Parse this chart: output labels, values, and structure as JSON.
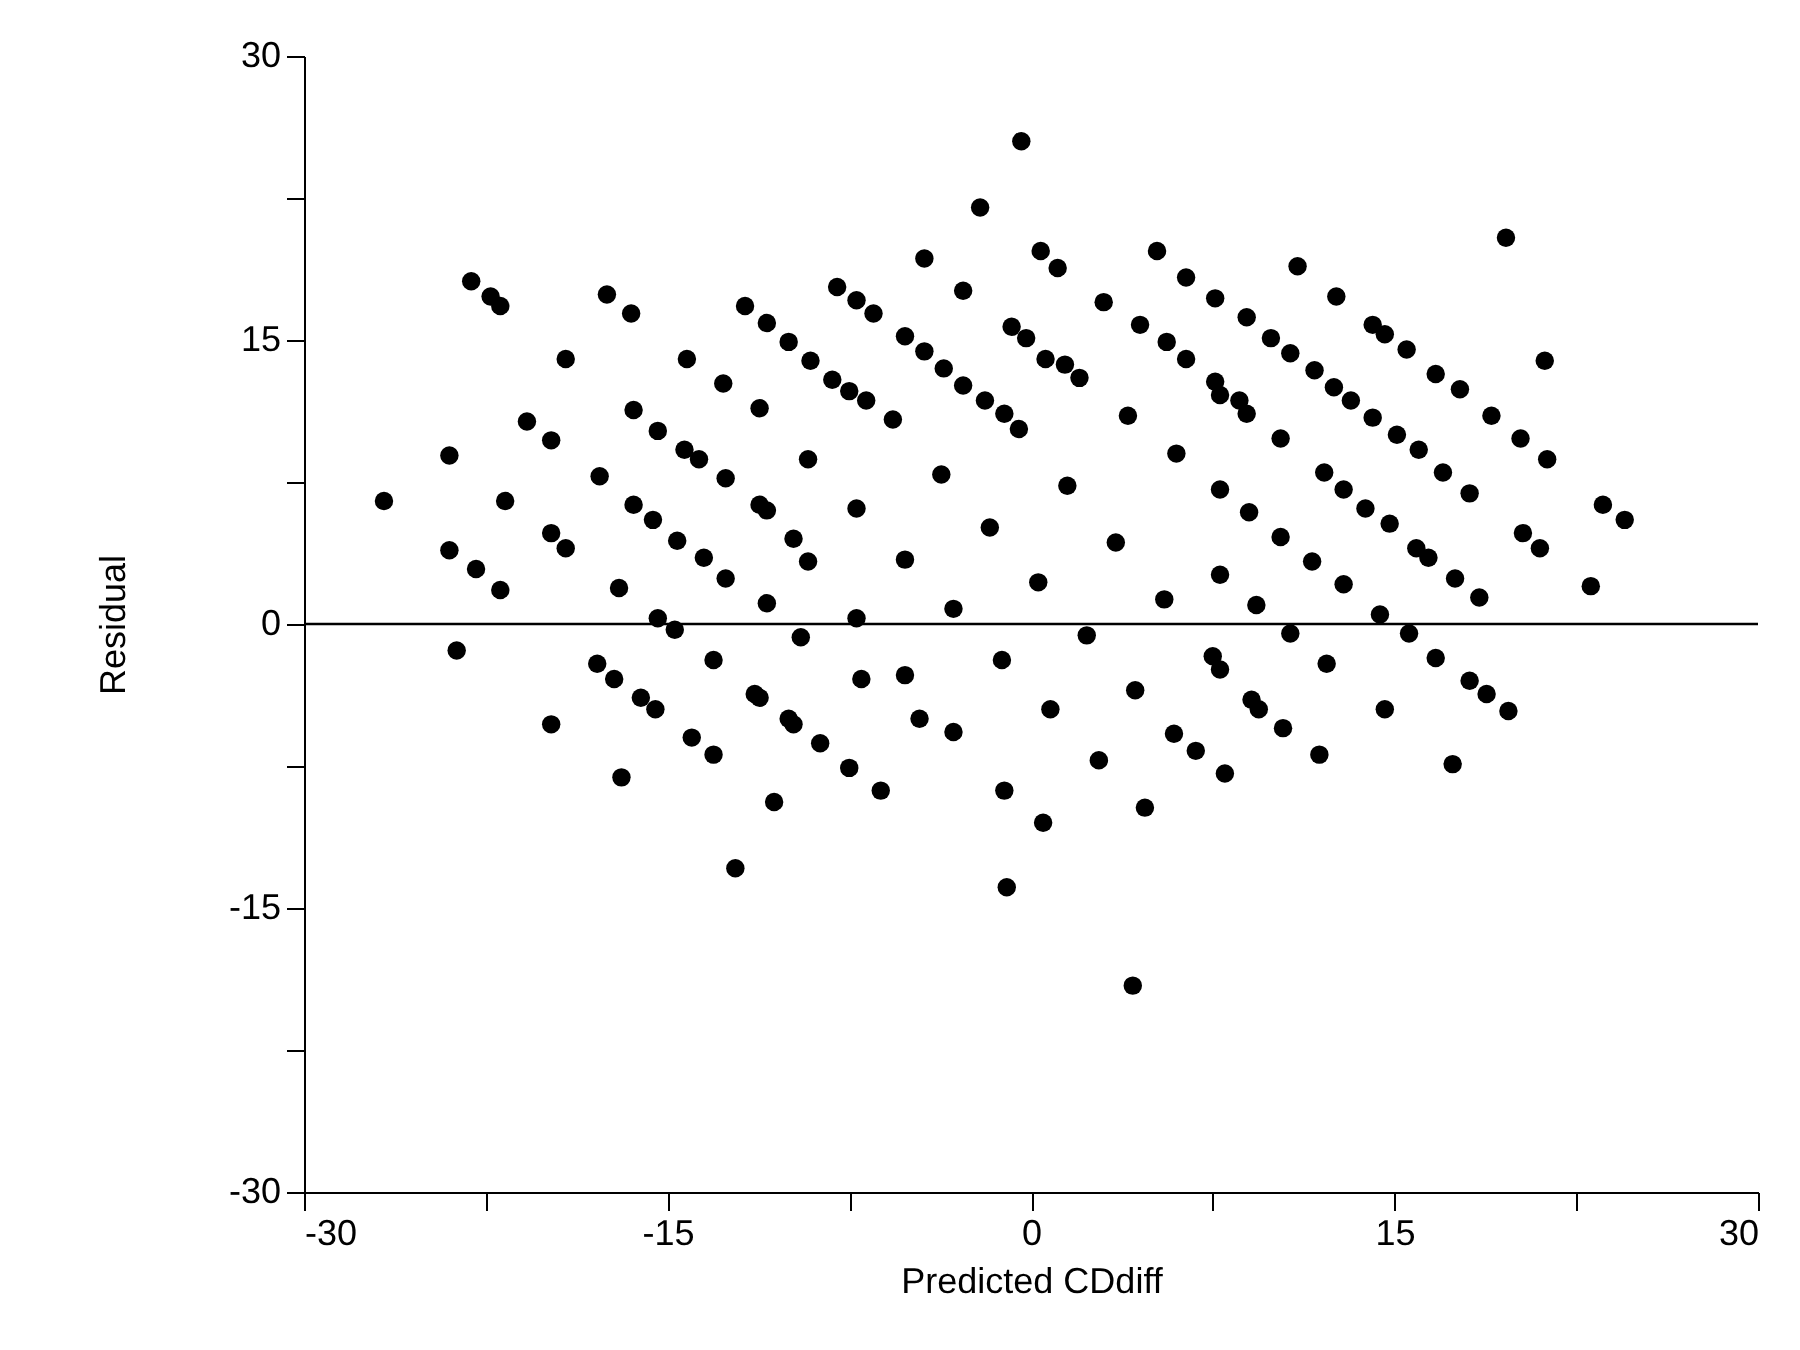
{
  "chart_data": {
    "type": "scatter",
    "xlabel": "Predicted CDdiff",
    "ylabel": "Residual",
    "xlim": [
      -30,
      30
    ],
    "ylim": [
      -30,
      30
    ],
    "xticks": [
      -30,
      {
        "value": -22.5,
        "label": null
      },
      -15,
      {
        "value": -7.5,
        "label": null
      },
      0,
      {
        "value": 7.5,
        "label": null
      },
      15,
      {
        "value": 22.5,
        "label": null
      },
      30
    ],
    "yticks": [
      -30,
      {
        "value": -22.5,
        "label": null
      },
      -15,
      {
        "value": -7.5,
        "label": null
      },
      0,
      {
        "value": 7.5,
        "label": null
      },
      15,
      {
        "value": 22.5,
        "label": null
      },
      30
    ],
    "grid": false,
    "marker": "circle",
    "ref_lines": [
      {
        "axis": "y",
        "value": 0,
        "color": "#000000"
      }
    ],
    "series": [
      {
        "color": "#000000",
        "x": [
          -23.1,
          -22.3,
          -21.9,
          -17.5,
          -16.5,
          -11.8,
          -19.2,
          -14.2,
          -12.7,
          -20.8,
          -19.8,
          -24.0,
          -26.7,
          -21.7,
          -16.4,
          -15.4,
          -14.3,
          -13.7,
          -17.8,
          -16.4,
          -15.6,
          -14.6,
          -13.5,
          -12.6,
          -10.9,
          -12.6,
          -10.9,
          -9.8,
          -19.8,
          -19.2,
          -24.0,
          -22.9,
          -21.9,
          -17.0,
          -15.4,
          -14.7,
          -13.1,
          -11.4,
          -9.8,
          -23.7,
          -17.9,
          -17.2,
          -16.1,
          -15.5,
          -19.8,
          -14.0,
          -13.1,
          -16.9,
          -10.6,
          -12.2,
          -2.1,
          -4.4,
          0.4,
          1.1,
          -2.8,
          -8.0,
          -7.2,
          -6.5,
          -0.4,
          4.2,
          -1.0,
          0.5,
          -10.9,
          -10.0,
          -9.1,
          -8.2,
          -7.5,
          -6.8,
          -5.2,
          -4.4,
          -3.6,
          -2.8,
          -1.9,
          -1.1,
          -0.8,
          -0.2,
          0.6,
          1.4,
          3.0,
          4.5,
          5.6,
          6.4,
          7.6,
          8.6,
          5.2,
          6.4,
          7.6,
          8.9,
          -11.2,
          -9.2,
          -7.2,
          -5.2,
          -3.2,
          -1.2,
          0.8,
          2.8,
          4.7,
          -5.7,
          -3.7,
          -1.7,
          0.3,
          2.3,
          4.3,
          5.9,
          -11.2,
          -9.2,
          -7.2,
          -5.2,
          -3.2,
          -1.1,
          -0.5,
          1.5,
          3.5,
          5.5,
          7.5,
          9.4,
          2.0,
          4.0,
          6.0,
          7.8,
          9.0,
          10.3,
          11.6,
          12.9,
          14.4,
          -9.5,
          -7.0,
          -4.6,
          -11.2,
          -10.0,
          -8.7,
          -7.5,
          -6.2,
          6.8,
          8.0,
          19.6,
          11.0,
          12.6,
          14.1,
          14.6,
          15.5,
          16.7,
          17.7,
          19.0,
          20.2,
          21.3,
          21.2,
          9.9,
          10.7,
          11.7,
          12.5,
          13.2,
          14.1,
          15.1,
          16.0,
          17.0,
          18.1,
          7.8,
          8.9,
          10.3,
          12.1,
          12.9,
          13.8,
          14.8,
          15.9,
          16.4,
          17.5,
          18.5,
          20.3,
          21.0,
          23.6,
          24.5,
          23.1,
          7.8,
          9.3,
          10.7,
          12.2,
          15.6,
          16.7,
          18.1,
          18.8,
          19.7,
          7.8,
          9.1,
          10.4,
          14.6,
          11.9,
          17.4
        ],
        "values": [
          18.1,
          17.3,
          16.8,
          17.4,
          16.4,
          16.8,
          14.0,
          14.0,
          12.7,
          10.7,
          9.7,
          8.9,
          6.5,
          6.5,
          11.3,
          10.2,
          9.2,
          8.7,
          7.8,
          6.3,
          5.5,
          4.4,
          3.5,
          2.4,
          1.1,
          7.7,
          6.0,
          4.5,
          4.8,
          4.0,
          3.9,
          2.9,
          1.8,
          1.9,
          0.3,
          -0.3,
          -1.9,
          -3.7,
          -5.3,
          -1.4,
          -2.1,
          -2.9,
          -3.9,
          -4.5,
          -5.3,
          -6.0,
          -6.9,
          -8.1,
          -9.4,
          -12.9,
          22.0,
          19.3,
          19.7,
          18.8,
          17.6,
          17.8,
          17.1,
          16.4,
          25.5,
          -19.1,
          -13.9,
          -10.5,
          15.9,
          14.9,
          13.9,
          12.9,
          12.3,
          11.8,
          15.2,
          14.4,
          13.5,
          12.6,
          11.8,
          11.1,
          15.7,
          15.1,
          14.0,
          13.7,
          17.0,
          15.8,
          14.9,
          14.0,
          12.8,
          11.8,
          19.7,
          18.3,
          17.2,
          16.2,
          11.4,
          8.7,
          6.1,
          3.4,
          0.8,
          -1.9,
          -4.5,
          -7.2,
          -9.7,
          10.8,
          7.9,
          5.1,
          2.2,
          -0.6,
          -3.5,
          -5.8,
          6.3,
          3.3,
          0.3,
          -2.7,
          -5.7,
          -8.8,
          10.3,
          7.3,
          4.3,
          1.3,
          -1.7,
          -4.5,
          13.0,
          11.0,
          9.0,
          7.1,
          5.9,
          4.6,
          3.3,
          2.1,
          0.5,
          -0.7,
          -2.9,
          -5.0,
          -3.9,
          -5.0,
          -6.3,
          -7.6,
          -8.8,
          -6.7,
          -7.9,
          20.4,
          18.9,
          17.3,
          15.8,
          15.3,
          14.5,
          13.2,
          12.4,
          11.0,
          9.8,
          8.7,
          13.9,
          15.1,
          14.3,
          13.4,
          12.5,
          11.8,
          10.9,
          10.0,
          9.2,
          8.0,
          6.9,
          12.1,
          11.1,
          9.8,
          8.0,
          7.1,
          6.1,
          5.3,
          4.0,
          3.5,
          2.4,
          1.4,
          4.8,
          4.0,
          6.3,
          5.5,
          2.0,
          2.6,
          1.0,
          -0.5,
          -2.1,
          -0.5,
          -1.8,
          -3.0,
          -3.7,
          -4.6,
          -2.4,
          -4.0,
          -5.5,
          -4.5,
          -6.9,
          -7.4
        ]
      }
    ]
  }
}
